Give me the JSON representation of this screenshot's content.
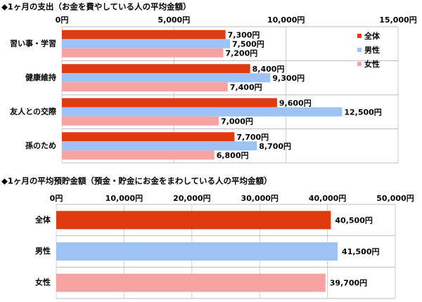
{
  "chart_data": [
    {
      "type": "bar",
      "title": "◆1ヶ月の支出（お金を費やしている人の平均金額）",
      "categories": [
        "習い事・学習",
        "健康維持",
        "友人との交際",
        "孫のため"
      ],
      "series": [
        {
          "name": "全体",
          "color": "#df3a10",
          "values": [
            7300,
            8400,
            9600,
            7700
          ],
          "value_labels": [
            "7,300円",
            "8,400円",
            "9,600円",
            "7,700円"
          ]
        },
        {
          "name": "男性",
          "color": "#9dc3f4",
          "values": [
            7500,
            9300,
            12500,
            8700
          ],
          "value_labels": [
            "7,500円",
            "9,300円",
            "12,500円",
            "8,700円"
          ]
        },
        {
          "name": "女性",
          "color": "#f7a3a3",
          "values": [
            7200,
            7400,
            7000,
            6800
          ],
          "value_labels": [
            "7,200円",
            "7,400円",
            "7,000円",
            "6,800円"
          ]
        }
      ],
      "xlim": [
        0,
        15000
      ],
      "xticks": [
        {
          "value": 0,
          "label": "0円"
        },
        {
          "value": 5000,
          "label": "5,000円"
        },
        {
          "value": 10000,
          "label": "10,000円"
        },
        {
          "value": 15000,
          "label": "15,000円"
        }
      ],
      "grid": true,
      "legend": "upper right"
    },
    {
      "type": "bar",
      "title": "◆1ヶ月の平均預貯金額（預金・貯金にお金をまわしている人の平均金額）",
      "categories": [
        "全体",
        "男性",
        "女性"
      ],
      "values": [
        40500,
        41500,
        39700
      ],
      "value_labels": [
        "40,500円",
        "41,500円",
        "39,700円"
      ],
      "colors": [
        "#df3a10",
        "#9dc3f4",
        "#f7a3a3"
      ],
      "xlim": [
        0,
        50000
      ],
      "xticks": [
        {
          "value": 0,
          "label": "0円"
        },
        {
          "value": 10000,
          "label": "10,000円"
        },
        {
          "value": 20000,
          "label": "20,000円"
        },
        {
          "value": 30000,
          "label": "30,000円"
        },
        {
          "value": 40000,
          "label": "40,000円"
        },
        {
          "value": 50000,
          "label": "50,000円"
        }
      ],
      "grid": true
    }
  ]
}
